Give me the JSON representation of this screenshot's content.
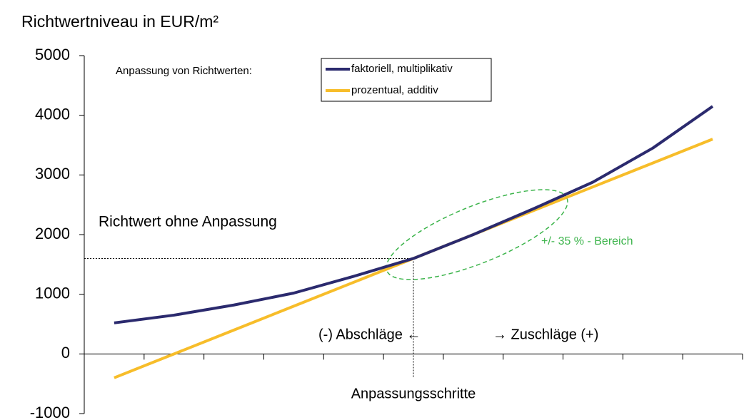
{
  "chart_data": {
    "type": "line",
    "title": "Richtwertniveau in EUR/m²",
    "legend_title": "Anpassung von Richtwerten:",
    "categories": [
      null,
      null,
      null,
      null,
      null,
      null,
      null,
      null,
      null,
      null,
      null
    ],
    "series": [
      {
        "name": "faktoriell, multiplikativ",
        "color": "#2b2a6e",
        "values": [
          520,
          650,
          820,
          1020,
          1300,
          1600,
          2000,
          2430,
          2880,
          3450,
          4150
        ]
      },
      {
        "name": "prozentual, additiv",
        "color": "#f7bd2a",
        "values": [
          -400,
          0,
          400,
          800,
          1200,
          1600,
          2000,
          2400,
          2800,
          3200,
          3600
        ]
      }
    ],
    "ylim": [
      -1000,
      5000
    ],
    "yticks": [
      -1000,
      0,
      1000,
      2000,
      3000,
      4000,
      5000
    ],
    "annotations": [
      "Richtwert ohne Anpassung",
      "+/- 35 % - Bereich",
      "(-) Abschläge ←",
      "→ Zuschläge (+)",
      "Anpassungsschritte"
    ]
  }
}
